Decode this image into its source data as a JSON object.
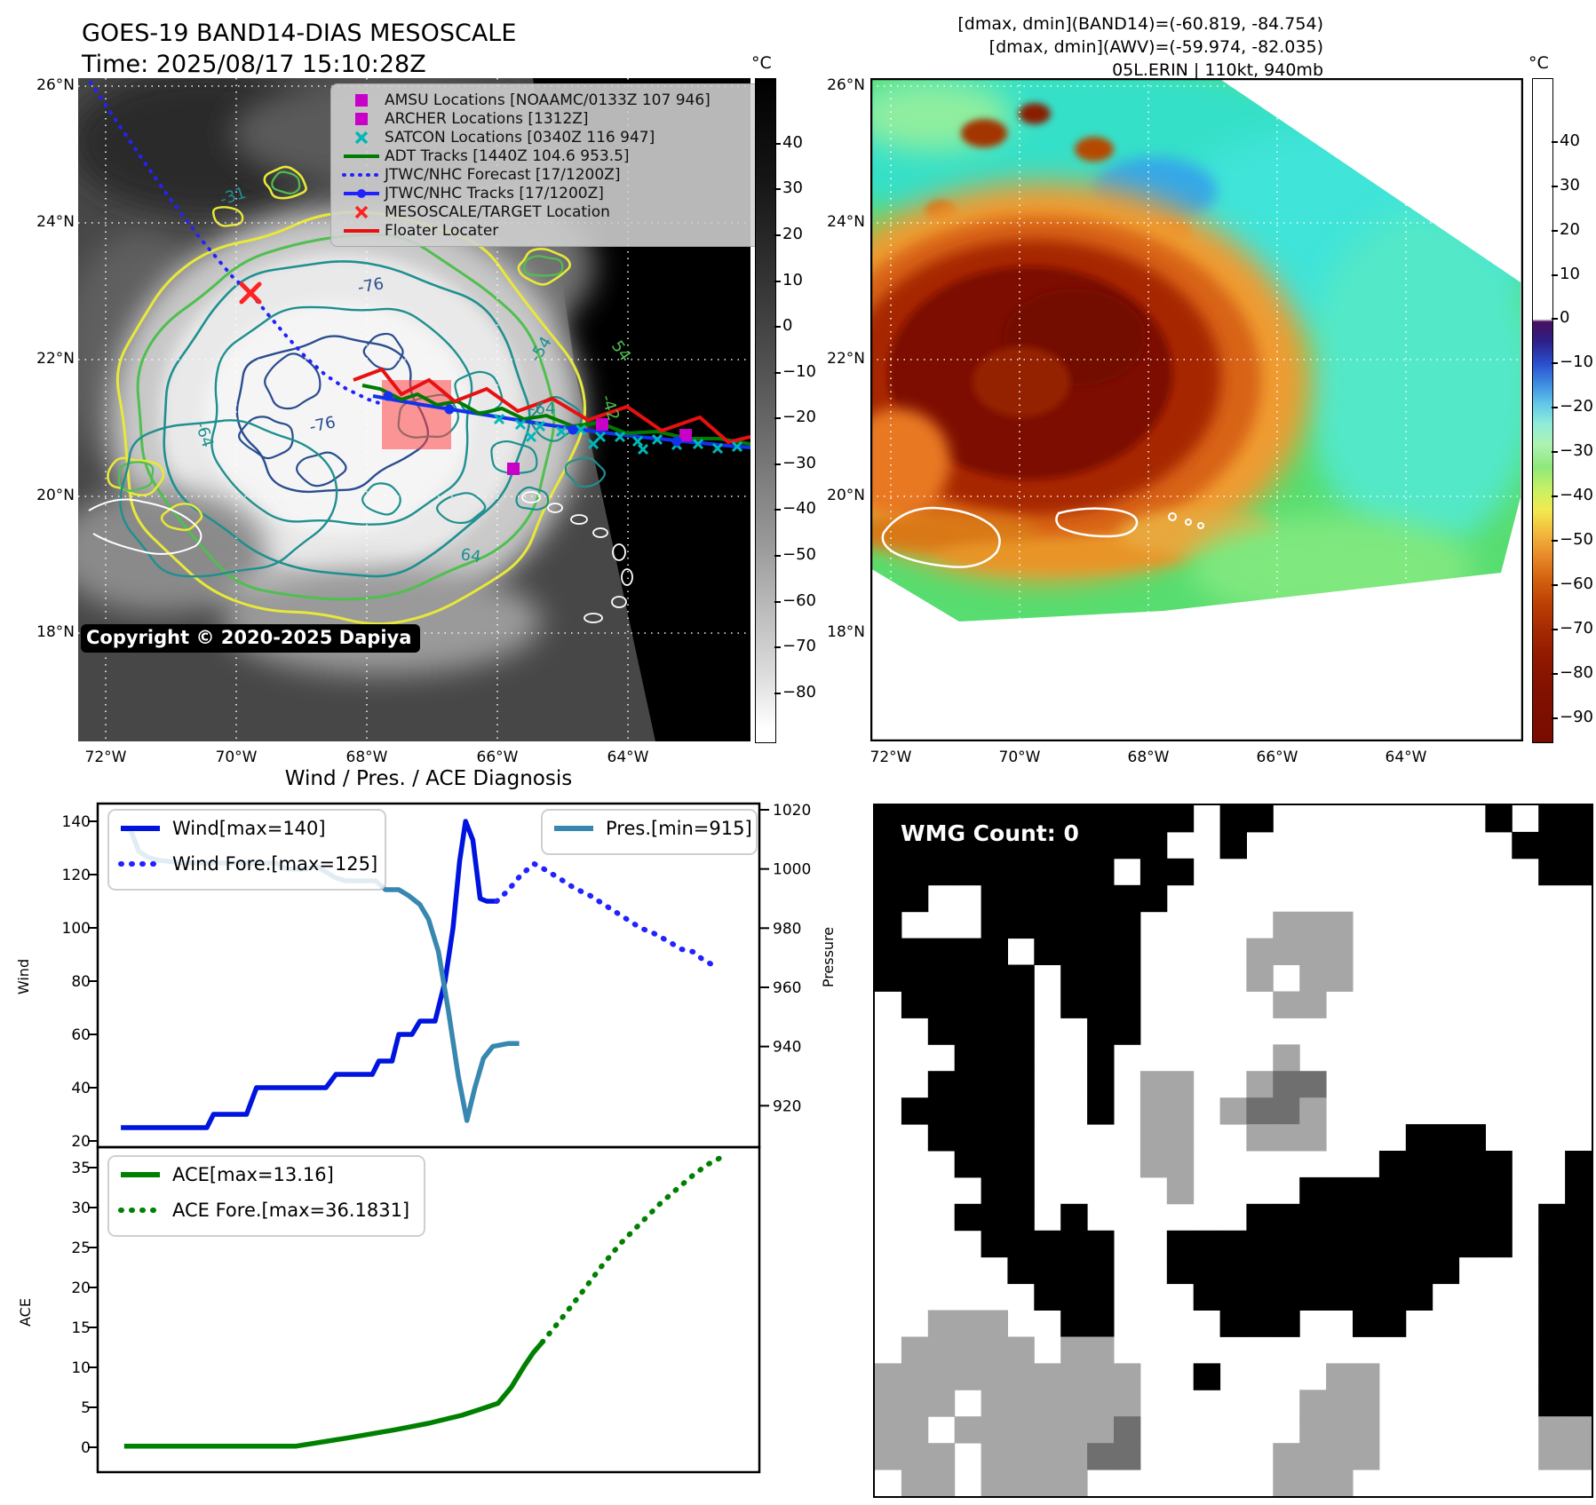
{
  "colors": {
    "wind": "#0014e0",
    "wind_forecast": "#2222ff",
    "pressure": "#3787b0",
    "ace": "#008000",
    "target_box": "#ff4646",
    "amsu_magenta": "#c800c8",
    "satcon_cyan": "#00b8b8",
    "adt_green": "#007a00",
    "floater_red": "#e81010"
  },
  "panel_tl": {
    "title_line1": "GOES-19 BAND14-DIAS MESOSCALE",
    "title_line2": "Time: 2025/08/17 15:10:28Z",
    "copyright": "Copyright © 2020-2025 Dapiya",
    "colorbar_unit": "°C",
    "colorbar_ticks": [
      40,
      30,
      20,
      10,
      0,
      -10,
      -20,
      -30,
      -40,
      -50,
      -60,
      -70,
      -80
    ],
    "lat_ticks": [
      "26°N",
      "24°N",
      "22°N",
      "20°N",
      "18°N"
    ],
    "lon_ticks": [
      "72°W",
      "70°W",
      "68°W",
      "66°W",
      "64°W"
    ],
    "legend": [
      {
        "label": "AMSU Locations [NOAAMC/0133Z 107 946]",
        "marker": "square",
        "color": "#c800c8"
      },
      {
        "label": "ARCHER Locations [1312Z]",
        "marker": "square",
        "color": "#c800c8"
      },
      {
        "label": "SATCON Locations [0340Z 116 947]",
        "marker": "x",
        "color": "#00b8b8"
      },
      {
        "label": "ADT Tracks [1440Z 104.6 953.5]",
        "marker": "line",
        "color": "#007a00"
      },
      {
        "label": "JTWC/NHC Forecast [17/1200Z]",
        "marker": "dotted",
        "color": "#2222ff"
      },
      {
        "label": "JTWC/NHC Tracks [17/1200Z]",
        "marker": "linedot",
        "color": "#2222ff"
      },
      {
        "label": "MESOSCALE/TARGET Location",
        "marker": "x",
        "color": "#ff2222"
      },
      {
        "label": "Floater Locater",
        "marker": "line",
        "color": "#e81010"
      }
    ],
    "contour_labels": [
      "-31",
      "-76",
      "-64",
      "-76",
      "-64",
      "-54",
      "-42",
      "54",
      "64"
    ]
  },
  "panel_tr": {
    "header_line1": "[dmax, dmin](BAND14)=(-60.819, -84.754)",
    "header_line2": "[dmax, dmin](AWV)=(-59.974, -82.035)",
    "header_line3": "05L.ERIN | 110kt, 940mb",
    "colorbar_unit": "°C",
    "colorbar_ticks": [
      40,
      30,
      20,
      10,
      0,
      -10,
      -20,
      -30,
      -40,
      -50,
      -60,
      -70,
      -80,
      -90
    ],
    "lat_ticks": [
      "26°N",
      "24°N",
      "22°N",
      "20°N",
      "18°N"
    ],
    "lon_ticks": [
      "72°W",
      "70°W",
      "68°W",
      "66°W",
      "64°W"
    ]
  },
  "panel_br": {
    "badge": "WMG Count: 0",
    "cell_colors": {
      "#": "#000000",
      "g": "#a6a6a6",
      "d": "#6f6f6f",
      ".": "#ffffff"
    },
    "grid": [
      "############.##........#.##",
      "###########..#..........###",
      "#########.##.............##",
      "##..#######................",
      "#...######.....ggg.........",
      "#####.####....gggg.........",
      "######.###....g.gg.........",
      ".#####.###.....gg..........",
      "..####..##.................",
      "...###..#......g...........",
      "..####..#.gg..gdd..........",
      ".#####..#.gg.gddg..........",
      "..####....gg..ggg...###....",
      "...###....gg.......#####..#",
      "....##.....g....########..#",
      "...###.#......##########.##",
      "....#####..#############.##",
      ".....####..###########...##",
      "......###...#########....##",
      "..ggg..##....###..##.....##",
      ".ggggg.gg................##",
      "gggggggggg..#....gg......##",
      "ggg.gggggg......ggg......##",
      "gg.ggggggd......ggg......gg",
      "ggg.ggggdd.....gggg......gg",
      ".gg.gggg.......ggg........."
    ]
  },
  "chart_data": [
    {
      "type": "line",
      "title": "Wind / Pres. / ACE Diagnosis",
      "ylabel": "Wind",
      "y2label": "Pressure",
      "ylim": [
        17,
        146
      ],
      "y2lim": [
        906,
        1022
      ],
      "yticks": [
        20,
        40,
        60,
        80,
        100,
        120,
        140
      ],
      "y2ticks": [
        920,
        940,
        960,
        980,
        1000,
        1020
      ],
      "grid": false,
      "series": [
        {
          "name": "Wind[max=140]",
          "style": "solid",
          "axis": "wind",
          "color": "#0014e0",
          "points": [
            [
              0.035,
              25
            ],
            [
              0.165,
              25
            ],
            [
              0.175,
              30
            ],
            [
              0.225,
              30
            ],
            [
              0.24,
              40
            ],
            [
              0.345,
              40
            ],
            [
              0.36,
              45
            ],
            [
              0.415,
              45
            ],
            [
              0.425,
              50
            ],
            [
              0.445,
              50
            ],
            [
              0.455,
              60
            ],
            [
              0.475,
              60
            ],
            [
              0.487,
              65
            ],
            [
              0.51,
              65
            ],
            [
              0.525,
              80
            ],
            [
              0.537,
              100
            ],
            [
              0.547,
              125
            ],
            [
              0.556,
              140
            ],
            [
              0.567,
              133
            ],
            [
              0.578,
              111
            ],
            [
              0.588,
              110
            ],
            [
              0.603,
              110
            ]
          ]
        },
        {
          "name": "Wind Fore.[max=125]",
          "style": "dotted",
          "axis": "wind",
          "color": "#2222ff",
          "points": [
            [
              0.603,
              110
            ],
            [
              0.62,
              114
            ],
            [
              0.64,
              120
            ],
            [
              0.66,
              124
            ],
            [
              0.675,
              122
            ],
            [
              0.695,
              119
            ],
            [
              0.72,
              115
            ],
            [
              0.745,
              112
            ],
            [
              0.77,
              108
            ],
            [
              0.795,
              104
            ],
            [
              0.82,
              100
            ],
            [
              0.84,
              98
            ],
            [
              0.862,
              95
            ],
            [
              0.882,
              92
            ],
            [
              0.9,
              91
            ],
            [
              0.915,
              88
            ],
            [
              0.93,
              86
            ]
          ]
        },
        {
          "name": "Pres.[min=915]",
          "style": "solid",
          "axis": "pres",
          "color": "#3787b0",
          "points": [
            [
              0.035,
              1014
            ],
            [
              0.05,
              1013
            ],
            [
              0.062,
              1006
            ],
            [
              0.075,
              1004
            ],
            [
              0.09,
              1003
            ],
            [
              0.13,
              1002
            ],
            [
              0.27,
              1002
            ],
            [
              0.285,
              1000
            ],
            [
              0.315,
              1000
            ],
            [
              0.33,
              1001
            ],
            [
              0.345,
              999
            ],
            [
              0.36,
              997
            ],
            [
              0.375,
              996
            ],
            [
              0.42,
              996
            ],
            [
              0.435,
              993
            ],
            [
              0.455,
              993
            ],
            [
              0.47,
              991
            ],
            [
              0.487,
              988
            ],
            [
              0.5,
              983
            ],
            [
              0.515,
              972
            ],
            [
              0.53,
              952
            ],
            [
              0.545,
              930
            ],
            [
              0.558,
              915
            ],
            [
              0.57,
              926
            ],
            [
              0.583,
              936
            ],
            [
              0.597,
              940
            ],
            [
              0.62,
              941
            ],
            [
              0.637,
              941
            ]
          ]
        }
      ]
    },
    {
      "type": "line",
      "ylabel": "ACE",
      "ylim": [
        -1.8,
        37.5
      ],
      "yticks": [
        0,
        5,
        10,
        15,
        20,
        25,
        30,
        35
      ],
      "grid": false,
      "series": [
        {
          "name": "ACE[max=13.16]",
          "style": "solid",
          "axis": "ace",
          "color": "#008000",
          "points": [
            [
              0.04,
              0.15
            ],
            [
              0.3,
              0.15
            ],
            [
              0.38,
              1.2
            ],
            [
              0.45,
              2.2
            ],
            [
              0.5,
              3.0
            ],
            [
              0.55,
              4.0
            ],
            [
              0.58,
              4.8
            ],
            [
              0.605,
              5.5
            ],
            [
              0.625,
              7.5
            ],
            [
              0.645,
              10.2
            ],
            [
              0.658,
              11.8
            ],
            [
              0.672,
              13.16
            ]
          ]
        },
        {
          "name": "ACE Fore.[max=36.1831]",
          "style": "dotted",
          "axis": "ace",
          "color": "#008000",
          "points": [
            [
              0.672,
              13.16
            ],
            [
              0.7,
              16
            ],
            [
              0.73,
              19.2
            ],
            [
              0.76,
              22.5
            ],
            [
              0.79,
              25.5
            ],
            [
              0.82,
              28
            ],
            [
              0.85,
              30.5
            ],
            [
              0.878,
              32.5
            ],
            [
              0.902,
              34.2
            ],
            [
              0.922,
              35.4
            ],
            [
              0.94,
              36.18
            ]
          ]
        }
      ]
    }
  ]
}
